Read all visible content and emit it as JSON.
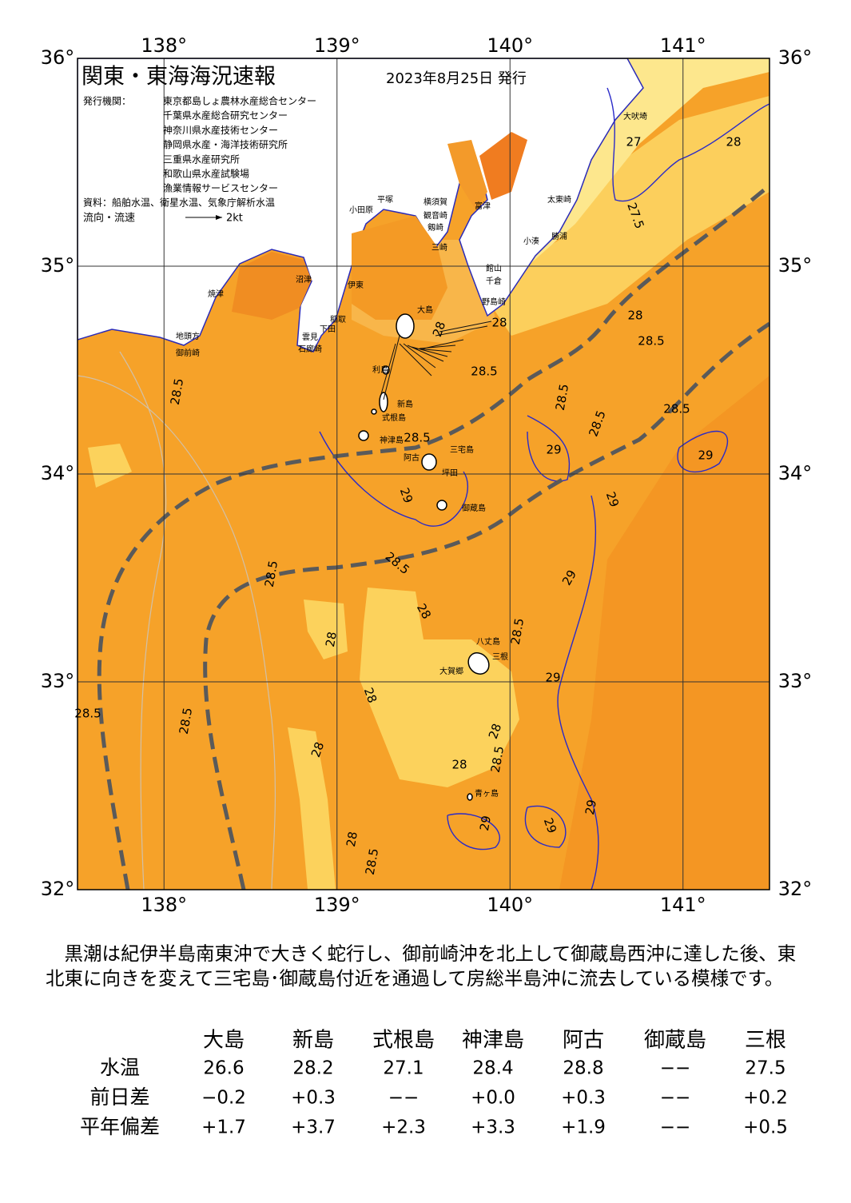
{
  "map": {
    "title": "関東・東海海況速報",
    "issue_date": "2023年8月25日 発行",
    "issuer_label": "発行機関：",
    "issuers": [
      "東京都島しょ農林水産総合センター",
      "千葉県水産総合研究センター",
      "神奈川県水産技術センター",
      "静岡県水産・海洋技術研究所",
      "三重県水産研究所",
      "和歌山県水産試験場",
      "漁業情報サービスセンター"
    ],
    "source": "資料：船舶水温、衛星水温、気象庁解析水温",
    "flow_legend": {
      "label": "流向・流速",
      "speed": "2kt"
    },
    "xlim": [
      137.5,
      141.5
    ],
    "ylim": [
      32,
      36
    ],
    "longitude_ticks": [
      {
        "value": 138,
        "label": "138°"
      },
      {
        "value": 139,
        "label": "139°"
      },
      {
        "value": 140,
        "label": "140°"
      },
      {
        "value": 141,
        "label": "141°"
      }
    ],
    "latitude_ticks": [
      {
        "value": 36,
        "label": "36°"
      },
      {
        "value": 35,
        "label": "35°"
      },
      {
        "value": 34,
        "label": "34°"
      },
      {
        "value": 33,
        "label": "33°"
      },
      {
        "value": 32,
        "label": "32°"
      }
    ],
    "places": [
      "大吠埼",
      "太東崎",
      "勝浦",
      "小湊",
      "富津",
      "横須賀",
      "観音崎",
      "剱崎",
      "三崎",
      "平塚",
      "小田原",
      "館山",
      "千倉",
      "野島崎",
      "大島",
      "伊東",
      "稲取",
      "下田",
      "雲見",
      "石廊崎",
      "沼津",
      "焼津",
      "御前崎",
      "地頭方",
      "利島",
      "新島",
      "式根島",
      "神津島",
      "三宅島",
      "阿古",
      "坪田",
      "御蔵島",
      "八丈島",
      "三根",
      "大賀郷",
      "青ヶ島"
    ],
    "contour_labels": [
      "27",
      "28",
      "27.5",
      "28",
      "28.5",
      "28",
      "28",
      "28.5",
      "28.5",
      "28.5",
      "28.5",
      "28.5",
      "28.5",
      "29",
      "29",
      "29",
      "29",
      "28.5",
      "29",
      "28.5",
      "28",
      "28",
      "28.5",
      "28",
      "29",
      "28.5",
      "28.5",
      "28",
      "28",
      "28.5",
      "28",
      "29",
      "29",
      "29",
      "28",
      "28.5"
    ]
  },
  "description": "黒潮は紀伊半島南東沖で大きく蛇行し、御前崎沖を北上して御蔵島西沖に達した後、東北東に向きを変えて三宅島･御蔵島付近を通過して房総半島沖に流去している模様です。",
  "table": {
    "header": [
      "大島",
      "新島",
      "式根島",
      "神津島",
      "阿古",
      "御蔵島",
      "三根"
    ],
    "rows": [
      [
        "水温",
        "26.6",
        "28.2",
        "27.1",
        "28.4",
        "28.8",
        "−−",
        "27.5"
      ],
      [
        "前日差",
        "−0.2",
        "+0.3",
        "−−",
        "+0.0",
        "+0.3",
        "−−",
        "+0.2"
      ],
      [
        "平年偏差",
        "+1.7",
        "+3.7",
        "+2.3",
        "+3.3",
        "+1.9",
        "−−",
        "+0.5"
      ]
    ]
  }
}
